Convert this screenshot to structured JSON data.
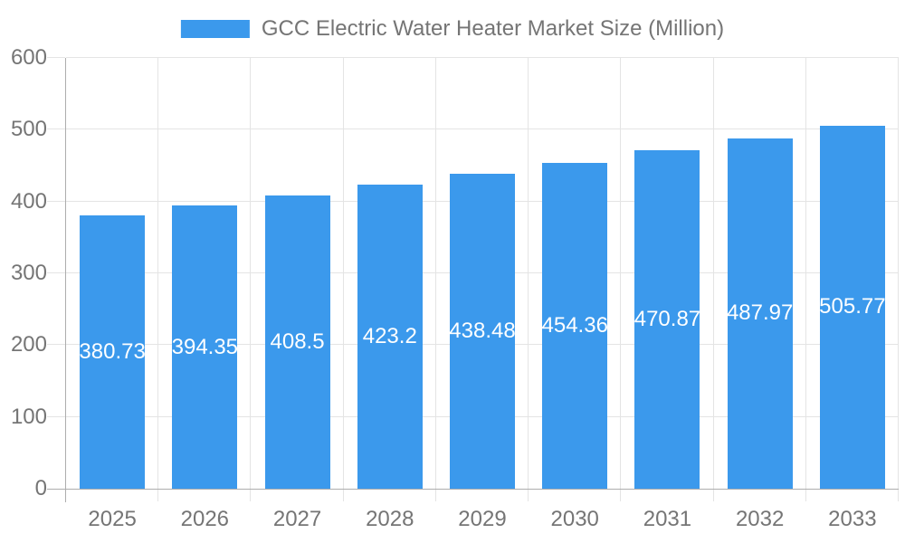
{
  "chart_data": {
    "type": "bar",
    "title": "GCC Electric Water Heater Market Size (Million)",
    "legend_entries": [
      "GCC Electric Water Heater Market Size (Million)"
    ],
    "legend_position": "top",
    "categories": [
      "2025",
      "2026",
      "2027",
      "2028",
      "2029",
      "2030",
      "2031",
      "2032",
      "2033"
    ],
    "series": [
      {
        "name": "GCC Electric Water Heater Market Size (Million)",
        "values": [
          380.73,
          394.35,
          408.5,
          423.2,
          438.48,
          454.36,
          470.87,
          487.97,
          505.77
        ]
      }
    ],
    "values": [
      380.73,
      394.35,
      408.5,
      423.2,
      438.48,
      454.36,
      470.87,
      487.97,
      505.77
    ],
    "value_labels": [
      "380.73",
      "394.35",
      "408.5",
      "423.2",
      "438.48",
      "454.36",
      "470.87",
      "487.97",
      "505.77"
    ],
    "xlabel": "",
    "ylabel": "",
    "ylim": [
      0,
      600
    ],
    "yticks": [
      0,
      100,
      200,
      300,
      400,
      500,
      600
    ],
    "grid": true,
    "colors": {
      "bar": "#3B99EC",
      "grid": "#E4E4E4",
      "axis": "#ADADAD",
      "text": "#757575",
      "value_label": "#FFFFFF",
      "background": "#FFFFFF"
    }
  }
}
